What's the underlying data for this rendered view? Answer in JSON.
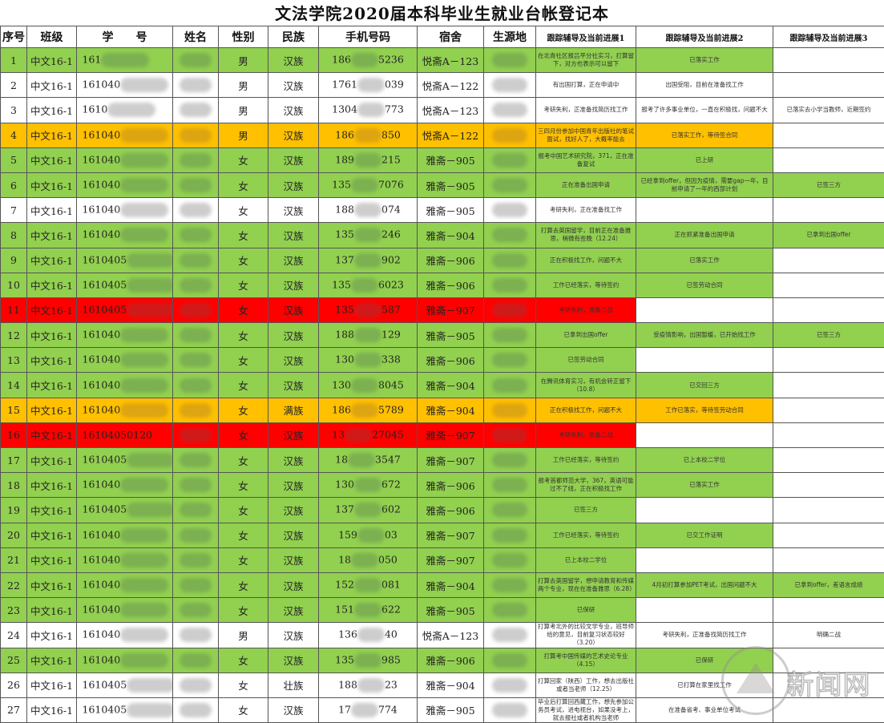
{
  "title": "文法学院2020届本科毕业生就业台帐登记本",
  "colors": {
    "green": "#92d050",
    "orange": "#ffc000",
    "red": "#ff0000",
    "white": "#ffffff"
  },
  "headers": [
    "序号",
    "班级",
    "学　　号",
    "姓名",
    "性别",
    "民族",
    "手机号码",
    "宿舍",
    "生源地",
    "跟踪辅导及当前进展1",
    "跟踪辅导及当前进展2",
    "跟踪辅导及当前进展3"
  ],
  "rows": [
    {
      "no": "1",
      "cls": "中文16-1",
      "id": "161",
      "gender": "男",
      "eth": "汉族",
      "ph1": "186",
      "ph2": "5236",
      "dorm": "悦斋A－123",
      "color": "green",
      "p1": "在北青社区报吕平分社实习，打算留下，对方也表示可以留下",
      "p2": "已落实工作",
      "p2c": "green",
      "p3": "",
      "p3c": "white"
    },
    {
      "no": "2",
      "cls": "中文16-1",
      "id": "161040",
      "gender": "男",
      "eth": "汉族",
      "ph1": "1761",
      "ph2": "039",
      "dorm": "悦斋A－122",
      "color": "white",
      "p1": "有出国打算，正在申请中",
      "p2": "出国受阻，目前在准备找工作",
      "p2c": "white",
      "p3": "",
      "p3c": "white"
    },
    {
      "no": "3",
      "cls": "中文16-1",
      "id": "1610",
      "gender": "男",
      "eth": "汉族",
      "ph1": "1304",
      "ph2": "773",
      "dorm": "悦斋A－123",
      "color": "white",
      "p1": "考研失利，正准备找简历找工作",
      "p2": "报考了许多事业单位，一直在积极找，问题不大",
      "p2c": "white",
      "p3": "已落实去小学当教师，近期签约",
      "p3c": "white"
    },
    {
      "no": "4",
      "cls": "中文16-1",
      "id": "161040",
      "gender": "男",
      "eth": "汉族",
      "ph1": "186",
      "ph2": "850",
      "dorm": "悦斋A－122",
      "color": "orange",
      "p1": "三四月份参加中国青年出版社的笔试面试，找好人了，大概率能去",
      "p2": "已落实工作，等待签合同",
      "p2c": "orange",
      "p3": "",
      "p3c": "white"
    },
    {
      "no": "5",
      "cls": "中文16-1",
      "id": "161040",
      "gender": "女",
      "eth": "汉族",
      "ph1": "189",
      "ph2": "215",
      "dorm": "雅斋－905",
      "color": "green",
      "p1": "报考中国艺术研究院，371，正在准备复试",
      "p2": "已上研",
      "p2c": "green",
      "p3": "",
      "p3c": "white"
    },
    {
      "no": "6",
      "cls": "中文16-1",
      "id": "161040",
      "gender": "女",
      "eth": "汉族",
      "ph1": "135",
      "ph2": "7076",
      "dorm": "雅斋－905",
      "color": "green",
      "p1": "正在准备出国申请",
      "p2": "已经拿到offer，但因为疫情，需要gap一年，目前申请了一年的西部计划",
      "p2c": "green",
      "p3": "已签三方",
      "p3c": "green"
    },
    {
      "no": "7",
      "cls": "中文16-1",
      "id": "161040",
      "gender": "女",
      "eth": "汉族",
      "ph1": "188",
      "ph2": "074",
      "dorm": "雅斋－905",
      "color": "white",
      "p1": "考研失利，正在准备找工作",
      "p2": "",
      "p2c": "white",
      "p3": "",
      "p3c": "white"
    },
    {
      "no": "8",
      "cls": "中文16-1",
      "id": "161040",
      "gender": "女",
      "eth": "汉族",
      "ph1": "135",
      "ph2": "246",
      "dorm": "雅斋－904",
      "color": "green",
      "p1": "打算去英国留学，目前正在准备雅思，稍微有些晚（12.24）",
      "p2": "正在抓紧准备出国申请",
      "p2c": "green",
      "p3": "已拿到出国offer",
      "p3c": "green"
    },
    {
      "no": "9",
      "cls": "中文16-1",
      "id": "1610405",
      "gender": "女",
      "eth": "汉族",
      "ph1": "137",
      "ph2": "902",
      "dorm": "雅斋－906",
      "color": "green",
      "p1": "正在积极找工作，问题不大",
      "p2": "已落实工作",
      "p2c": "green",
      "p3": "",
      "p3c": "white"
    },
    {
      "no": "10",
      "cls": "中文16-1",
      "id": "1610405",
      "gender": "女",
      "eth": "汉族",
      "ph1": "135",
      "ph2": "6023",
      "dorm": "雅斋－906",
      "color": "green",
      "p1": "工作已经落实，等待签约",
      "p2": "已签劳动合同",
      "p2c": "green",
      "p3": "",
      "p3c": "white"
    },
    {
      "no": "11",
      "cls": "中文16-1",
      "id": "1610405",
      "gender": "女",
      "eth": "汉族",
      "ph1": "135",
      "ph2": "587",
      "dorm": "雅斋－907",
      "color": "red",
      "p1": "考研失利，准备二战",
      "p2": "",
      "p2c": "white",
      "p3": "",
      "p3c": "white"
    },
    {
      "no": "12",
      "cls": "中文16-1",
      "id": "161040",
      "gender": "女",
      "eth": "汉族",
      "ph1": "188",
      "ph2": "129",
      "dorm": "雅斋－905",
      "color": "green",
      "p1": "已拿到出国offer",
      "p2": "受疫情影响，出国暂缓，已开始找工作",
      "p2c": "green",
      "p3": "已签三方",
      "p3c": "green"
    },
    {
      "no": "13",
      "cls": "中文16-1",
      "id": "161040",
      "gender": "女",
      "eth": "汉族",
      "ph1": "130",
      "ph2": "338",
      "dorm": "雅斋－906",
      "color": "green",
      "p1": "已签劳动合同",
      "p2": "",
      "p2c": "white",
      "p3": "",
      "p3c": "white"
    },
    {
      "no": "14",
      "cls": "中文16-1",
      "id": "161040",
      "gender": "女",
      "eth": "汉族",
      "ph1": "130",
      "ph2": "8045",
      "dorm": "雅斋－904",
      "color": "green",
      "p1": "在腾讯体育实习，有机会转正留下（10.8）",
      "p2": "已交回三方",
      "p2c": "green",
      "p3": "",
      "p3c": "white"
    },
    {
      "no": "15",
      "cls": "中文16-1",
      "id": "161040",
      "gender": "女",
      "eth": "满族",
      "ph1": "186",
      "ph2": "5789",
      "dorm": "雅斋－904",
      "color": "orange",
      "p1": "正在积极找工作，问题不大",
      "p2": "工作已落实，等待签劳动合同",
      "p2c": "orange",
      "p3": "",
      "p3c": "white"
    },
    {
      "no": "16",
      "cls": "中文16-1",
      "id": "16104050120",
      "gender": "女",
      "eth": "汉族",
      "ph1": "13",
      "ph2": "27045",
      "dorm": "雅斋－907",
      "color": "red",
      "p1": "考研失利，准备二战",
      "p2": "",
      "p2c": "white",
      "p3": "",
      "p3c": "white"
    },
    {
      "no": "17",
      "cls": "中文16-1",
      "id": "1610405",
      "gender": "女",
      "eth": "汉族",
      "ph1": "18",
      "ph2": "3547",
      "dorm": "雅斋－907",
      "color": "green",
      "p1": "工作已经落实，等待签约",
      "p2": "已上本校二学位",
      "p2c": "green",
      "p3": "",
      "p3c": "white"
    },
    {
      "no": "18",
      "cls": "中文16-1",
      "id": "161040",
      "gender": "女",
      "eth": "汉族",
      "ph1": "130",
      "ph2": "672",
      "dorm": "雅斋－906",
      "color": "green",
      "p1": "报考首都师范大学，367，英语可能过不了线，正在积极找工作",
      "p2": "已落实工作",
      "p2c": "green",
      "p3": "",
      "p3c": "white"
    },
    {
      "no": "19",
      "cls": "中文16-1",
      "id": "1610405",
      "gender": "女",
      "eth": "汉族",
      "ph1": "137",
      "ph2": "602",
      "dorm": "雅斋－906",
      "color": "green",
      "p1": "已签三方",
      "p2": "",
      "p2c": "white",
      "p3": "",
      "p3c": "white"
    },
    {
      "no": "20",
      "cls": "中文16-1",
      "id": "161040",
      "gender": "女",
      "eth": "汉族",
      "ph1": "159",
      "ph2": "03",
      "dorm": "雅斋－907",
      "color": "green",
      "p1": "工作已经落实，等待签约",
      "p2": "已交工作证明",
      "p2c": "green",
      "p3": "",
      "p3c": "white"
    },
    {
      "no": "21",
      "cls": "中文16-1",
      "id": "161040",
      "gender": "女",
      "eth": "汉族",
      "ph1": "18",
      "ph2": "050",
      "dorm": "雅斋－907",
      "color": "green",
      "p1": "已上本校二学位",
      "p2": "",
      "p2c": "white",
      "p3": "",
      "p3c": "white"
    },
    {
      "no": "22",
      "cls": "中文16-1",
      "id": "161040",
      "gender": "女",
      "eth": "汉族",
      "ph1": "152",
      "ph2": "081",
      "dorm": "雅斋－904",
      "color": "green",
      "p1": "打算去英国留学，想申请教育和传媒两个专业，现在在准备雅思（6.28）",
      "p2": "4月初打算参加PET考试，出国问题不大",
      "p2c": "green",
      "p3": "已拿到offer，差语言成绩",
      "p3c": "green"
    },
    {
      "no": "23",
      "cls": "中文16-1",
      "id": "161040",
      "gender": "女",
      "eth": "汉族",
      "ph1": "151",
      "ph2": "622",
      "dorm": "雅斋－905",
      "color": "green",
      "p1": "已保研",
      "p2": "",
      "p2c": "white",
      "p3": "",
      "p3c": "white"
    },
    {
      "no": "24",
      "cls": "中文16-1",
      "id": "161040",
      "gender": "男",
      "eth": "汉族",
      "ph1": "136",
      "ph2": "40",
      "dorm": "悦斋A－123",
      "color": "white",
      "p1": "打算考北外的比较文学专业，班导师给的意见，目前复习状态较好（3.20）",
      "p2": "考研失利，正准备找简历找工作",
      "p2c": "white",
      "p3": "明确二战",
      "p3c": "white"
    },
    {
      "no": "25",
      "cls": "中文16-1",
      "id": "161040",
      "gender": "女",
      "eth": "汉族",
      "ph1": "135",
      "ph2": "985",
      "dorm": "雅斋－906",
      "color": "green",
      "p1": "打算考中国传媒的艺术史论专业（4.15）",
      "p2": "已保研",
      "p2c": "green",
      "p3": "",
      "p3c": "white"
    },
    {
      "no": "26",
      "cls": "中文16-1",
      "id": "1610405",
      "gender": "女",
      "eth": "壮族",
      "ph1": "188",
      "ph2": "23",
      "dorm": "雅斋－904",
      "color": "white",
      "p1": "打算回家（陕西）工作，想去出版社或者当老师（12.25）",
      "p2": "已打算在家里找工作",
      "p2c": "white",
      "p3": "",
      "p3c": "white"
    },
    {
      "no": "27",
      "cls": "中文16-1",
      "id": "1610405",
      "gender": "女",
      "eth": "汉族",
      "ph1": "17",
      "ph2": "774",
      "dorm": "雅斋－905",
      "color": "white",
      "p1": "毕业后打算回西藏工作，想先参加公务员考试，进电视台，如果没考上，就去报社或者机构当老师",
      "p2": "在准备省考、事业单位考试",
      "p2c": "white",
      "p3": "",
      "p3c": "white"
    }
  ],
  "watermark": {
    "text": "新闻网",
    "icon": "university-seal-icon"
  }
}
